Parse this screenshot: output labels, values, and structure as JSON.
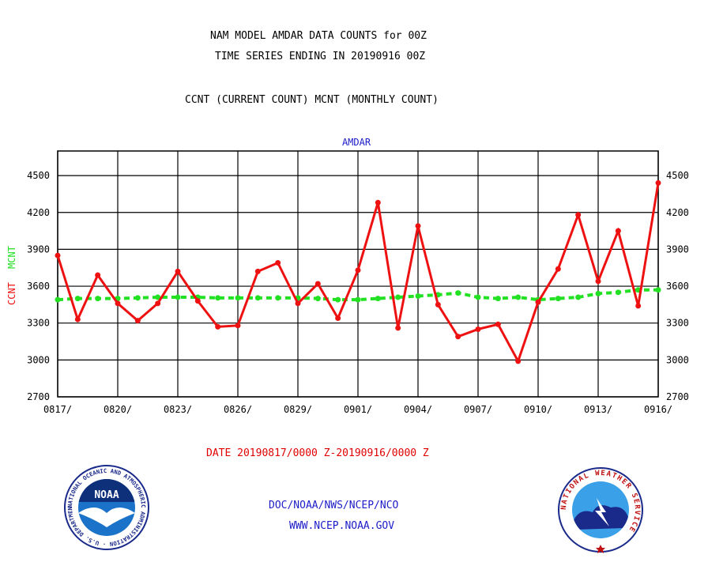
{
  "header": {
    "title_line1": "NAM MODEL AMDAR DATA COUNTS for 00Z",
    "title_line2": "TIME SERIES ENDING IN 20190916 00Z",
    "title_line3": "CCNT (CURRENT COUNT) MCNT (MONTHLY COUNT)"
  },
  "footer": {
    "date_range": "DATE 20190817/0000 Z-20190916/0000 Z",
    "org_line": "DOC/NOAA/NWS/NCEP/NCO",
    "url_line": "WWW.NCEP.NOAA.GOV"
  },
  "logos": {
    "noaa_text": "NOAA",
    "noaa_ring_text": "NATIONAL OCEANIC AND ATMOSPHERIC ADMINISTRATION · U.S. DEPARTMENT OF COMMERCE ·",
    "nws_ring_text": "NATIONAL WEATHER SERVICE"
  },
  "colors": {
    "ccnt": "#ee1111",
    "mcnt": "#22e022",
    "plot_title": "#1c1cc8",
    "footer_red": "#e00000",
    "footer_blue": "#1c1cc8"
  },
  "chart_data": {
    "type": "line",
    "title": "AMDAR",
    "ylabel_series1": "CCNT",
    "ylabel_series2": "MCNT",
    "ylim": [
      2700,
      4700
    ],
    "yticks": [
      2700,
      3000,
      3300,
      3600,
      3900,
      4200,
      4500
    ],
    "x_tick_labels": [
      "0817/",
      "0820/",
      "0823/",
      "0826/",
      "0829/",
      "0901/",
      "0904/",
      "0907/",
      "0910/",
      "0913/",
      "0916/"
    ],
    "grid": true,
    "x": [
      "0817",
      "0818",
      "0819",
      "0820",
      "0821",
      "0822",
      "0823",
      "0824",
      "0825",
      "0826",
      "0827",
      "0828",
      "0829",
      "0830",
      "0831",
      "0901",
      "0902",
      "0903",
      "0904",
      "0905",
      "0906",
      "0907",
      "0908",
      "0909",
      "0910",
      "0911",
      "0912",
      "0913",
      "0914",
      "0915",
      "0916"
    ],
    "series": [
      {
        "name": "CCNT",
        "values": [
          3850,
          3330,
          3690,
          3460,
          3320,
          3460,
          3720,
          3480,
          3270,
          3280,
          3720,
          3790,
          3460,
          3620,
          3340,
          3730,
          4280,
          3260,
          4090,
          3450,
          3190,
          3250,
          3290,
          2990,
          3470,
          3740,
          4180,
          3640,
          4050,
          3440,
          4440
        ]
      },
      {
        "name": "MCNT",
        "values": [
          3490,
          3500,
          3500,
          3500,
          3505,
          3510,
          3510,
          3510,
          3505,
          3505,
          3505,
          3505,
          3505,
          3500,
          3490,
          3490,
          3500,
          3510,
          3520,
          3530,
          3545,
          3510,
          3500,
          3510,
          3490,
          3500,
          3510,
          3540,
          3550,
          3570,
          3570
        ]
      }
    ]
  }
}
